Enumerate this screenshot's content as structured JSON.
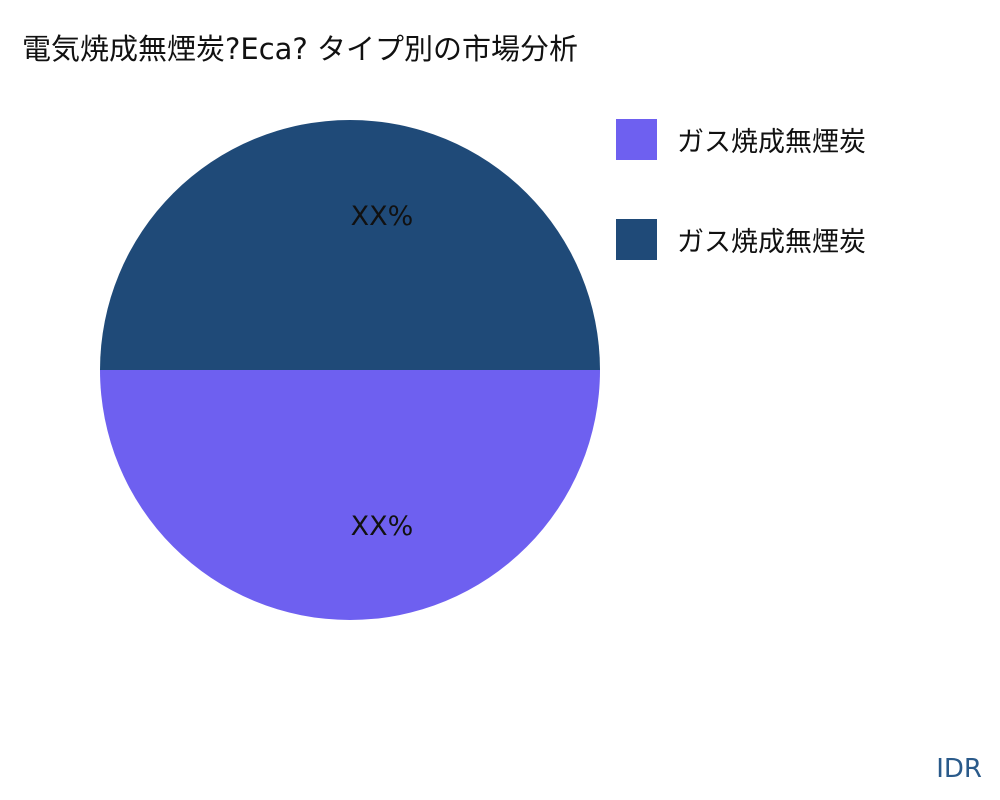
{
  "title": "電気焼成無煙炭?Eca? タイプ別の市場分析",
  "brand": "IDR",
  "chart_data": {
    "type": "pie",
    "title": "電気焼成無煙炭?Eca? タイプ別の市場分析",
    "categories": [
      "ガス焼成無煙炭",
      "ガス焼成無煙炭"
    ],
    "values": [
      50,
      50
    ],
    "labels": [
      "XX%",
      "XX%"
    ],
    "colors": [
      "#6e60f0",
      "#1f4a78"
    ],
    "legend": "right"
  }
}
